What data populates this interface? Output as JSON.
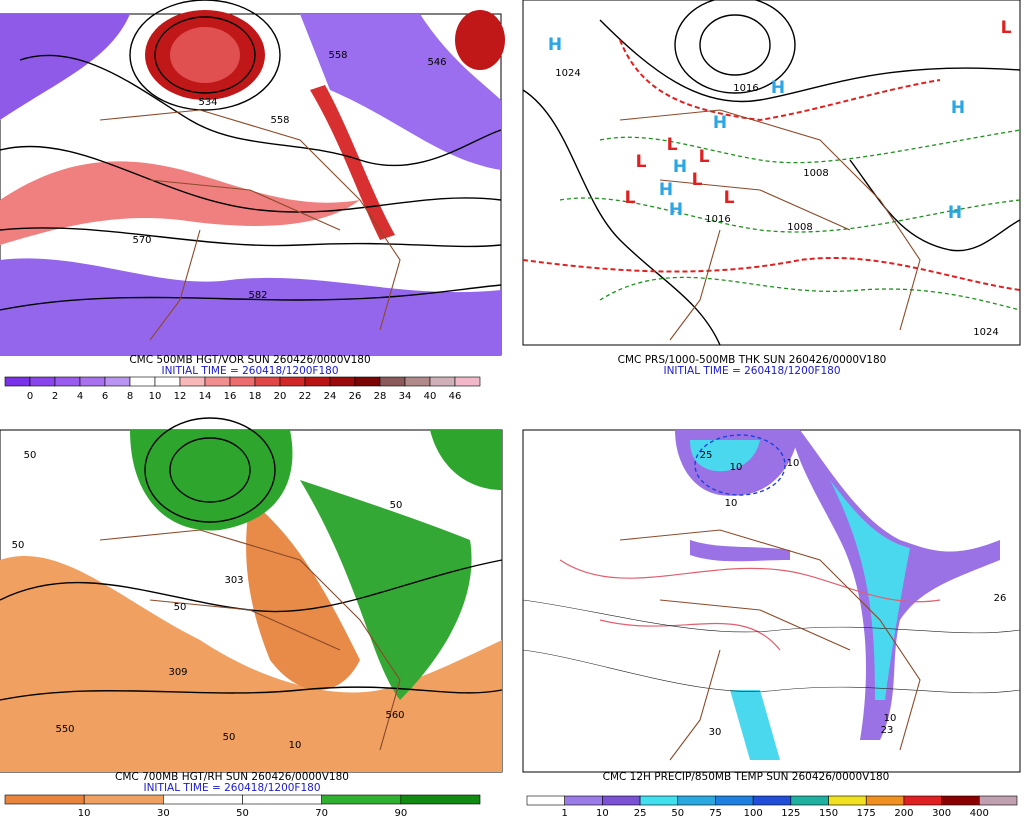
{
  "panels": [
    {
      "title": "CMC 500MB HGT/VOR SUN 260426/0000V180",
      "subtitle": "INITIAL TIME = 260418/1200F180",
      "labels": [
        "558",
        "546",
        "534",
        "558",
        "570",
        "582"
      ],
      "colorbar": {
        "labels": [
          "0",
          "2",
          "4",
          "6",
          "8",
          "10",
          "12",
          "14",
          "16",
          "18",
          "20",
          "22",
          "24",
          "26",
          "28",
          "34",
          "40",
          "46"
        ],
        "colors": [
          "#7a32e8",
          "#8a46ec",
          "#9a5cee",
          "#a872ef",
          "#b994f0",
          "#ffffff",
          "#ffffff",
          "#f6b8b8",
          "#f08f8f",
          "#eb6d6d",
          "#e04848",
          "#d02828",
          "#b81414",
          "#9a0a0a",
          "#7a0505",
          "#8a5a5a",
          "#b08a8a",
          "#d0b0b8",
          "#f0b8c8"
        ]
      }
    },
    {
      "title": "CMC PRS/1000-500MB THK SUN 260426/0000V180",
      "subtitle": "INITIAL TIME = 260418/1200F180",
      "labels": [
        "H",
        "1024",
        "1016",
        "H",
        "H",
        "H",
        "L",
        "L",
        "L",
        "L",
        "H",
        "H",
        "L",
        "L",
        "L",
        "H",
        "1008",
        "1016",
        "1008",
        "H",
        "1024"
      ]
    },
    {
      "title": "CMC 700MB HGT/RH SUN 260426/0000V180",
      "subtitle": "INITIAL TIME = 260418/1200F180",
      "labels": [
        "50",
        "50",
        "50",
        "309",
        "303",
        "550",
        "560",
        "50",
        "10",
        "50"
      ],
      "colorbar": {
        "labels": [
          "10",
          "30",
          "50",
          "70",
          "90"
        ],
        "colors": [
          "#e8843c",
          "#f0a060",
          "#ffffff",
          "#ffffff",
          "#30b030",
          "#108a10"
        ]
      }
    },
    {
      "title": "CMC 12H PRECIP/850MB TEMP SUN 260426/0000V180",
      "labels": [
        "25",
        "10",
        "10",
        "10",
        "26",
        "10",
        "23",
        "30"
      ],
      "colorbar": {
        "labels": [
          "1",
          "10",
          "25",
          "50",
          "75",
          "100",
          "125",
          "150",
          "175",
          "200",
          "300",
          "400"
        ],
        "colors": [
          "#ffffff",
          "#9a7ce8",
          "#7b52d6",
          "#40e0f0",
          "#2aa8e0",
          "#1e80e0",
          "#1f4fd8",
          "#20b0a0",
          "#f0e020",
          "#f09020",
          "#e02020",
          "#8a0000",
          "#c0a0b0"
        ]
      }
    }
  ]
}
